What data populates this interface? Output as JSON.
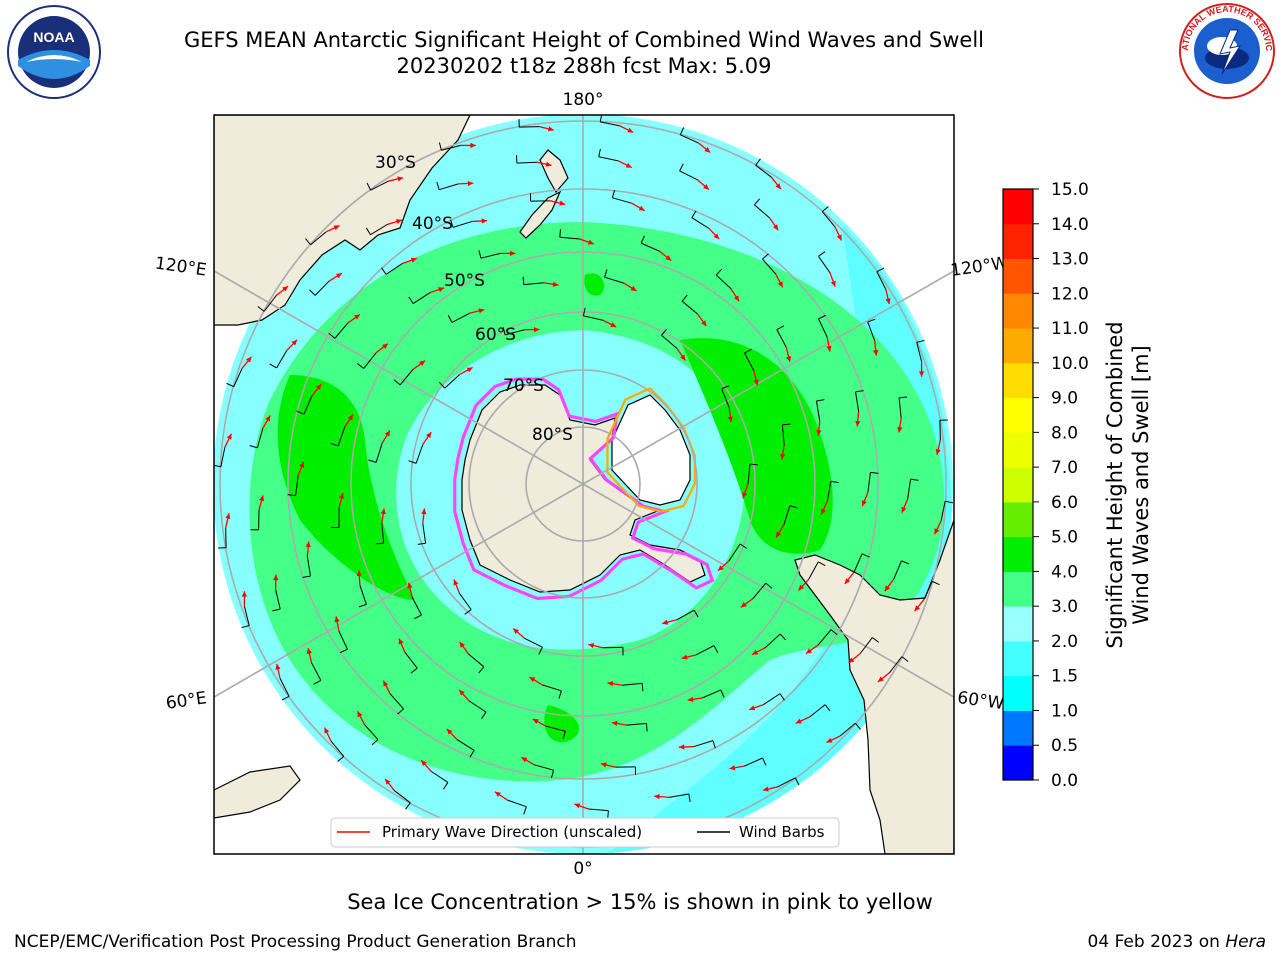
{
  "header": {
    "title_line1": "GEFS MEAN Antarctic Significant Height of Combined Wind Waves and Swell",
    "title_line2": "20230202 t18z 288h fcst   Max: 5.09",
    "logo_left": "NOAA",
    "logo_right": "NATIONAL WEATHER SERVICE"
  },
  "map": {
    "lon_labels": [
      "180°",
      "120°E",
      "120°W",
      "60°E",
      "60°W",
      "0°"
    ],
    "lat_labels": [
      "30°S",
      "40°S",
      "50°S",
      "60°S",
      "70°S",
      "80°S"
    ],
    "legend": {
      "wave_label": "Primary Wave Direction (unscaled)",
      "wind_label": "Wind Barbs"
    },
    "colors": {
      "land": "#efecdc",
      "ocean_low": "#88ffff",
      "ocean_mid": "#44ff88",
      "ocean_high": "#00ee00",
      "arrow": "#ff0000",
      "sea_ice": "#ff44ff"
    }
  },
  "colorbar": {
    "label_line1": "Significant Height of Combined",
    "label_line2": "Wind Waves and Swell [m]",
    "ticks": [
      "0.0",
      "0.5",
      "1.0",
      "1.5",
      "2.0",
      "3.0",
      "4.0",
      "5.0",
      "6.0",
      "7.0",
      "8.0",
      "9.0",
      "10.0",
      "11.0",
      "12.0",
      "13.0",
      "14.0",
      "15.0"
    ],
    "colors": [
      "#0000ff",
      "#0077ff",
      "#00ffff",
      "#44ffff",
      "#99ffff",
      "#44ff88",
      "#00ee00",
      "#66ee00",
      "#ccff00",
      "#eeff00",
      "#ffff00",
      "#ffdd00",
      "#ffaa00",
      "#ff8800",
      "#ff5500",
      "#ff2200",
      "#ff0000"
    ]
  },
  "footer": {
    "note": "Sea Ice Concentration > 15% is shown in pink to yellow",
    "left": "NCEP/EMC/Verification Post Processing Product Generation Branch",
    "right_date": "04 Feb 2023 on ",
    "right_host": "Hera"
  }
}
